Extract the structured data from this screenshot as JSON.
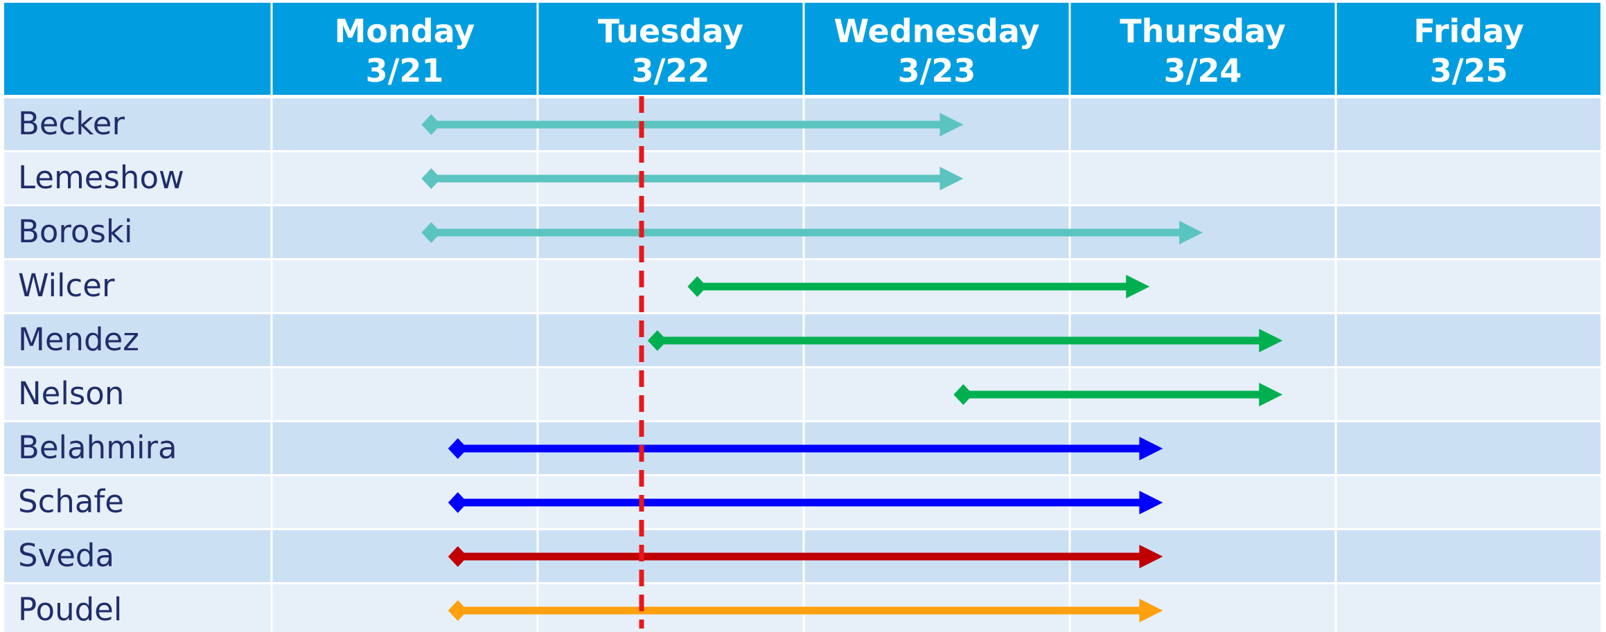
{
  "chart_data": {
    "type": "gantt",
    "x_axis": {
      "start": "3/21",
      "end": "3/26",
      "columns": [
        {
          "day": "Monday",
          "date": "3/21"
        },
        {
          "day": "Tuesday",
          "date": "3/22"
        },
        {
          "day": "Wednesday",
          "date": "3/23"
        },
        {
          "day": "Thursday",
          "date": "3/24"
        },
        {
          "day": "Friday",
          "date": "3/25"
        }
      ]
    },
    "current_marker": {
      "at": "3/22",
      "color": "#e8171b",
      "style": "dashed"
    },
    "rows": [
      {
        "name": "Becker",
        "start": 0.6,
        "end": 2.6,
        "color": "#5bc4c1"
      },
      {
        "name": "Lemeshow",
        "start": 0.6,
        "end": 2.6,
        "color": "#5bc4c1"
      },
      {
        "name": "Boroski",
        "start": 0.6,
        "end": 3.5,
        "color": "#5bc4c1"
      },
      {
        "name": "Wilcer",
        "start": 1.6,
        "end": 3.3,
        "color": "#00b050"
      },
      {
        "name": "Mendez",
        "start": 1.45,
        "end": 3.8,
        "color": "#00b050"
      },
      {
        "name": "Nelson",
        "start": 2.6,
        "end": 3.8,
        "color": "#00b050"
      },
      {
        "name": "Belahmira",
        "start": 0.7,
        "end": 3.35,
        "color": "#0000ff"
      },
      {
        "name": "Schafe",
        "start": 0.7,
        "end": 3.35,
        "color": "#0000ff"
      },
      {
        "name": "Sveda",
        "start": 0.7,
        "end": 3.35,
        "color": "#c00000"
      },
      {
        "name": "Poudel",
        "start": 0.7,
        "end": 3.35,
        "color": "#ffa00f"
      }
    ]
  },
  "colors": {
    "header_bg": "#009ee0",
    "row_even": "#cce0f3",
    "row_odd": "#e7eff9",
    "grid_line": "#ffffff",
    "label_text": "#1f2d6a"
  }
}
